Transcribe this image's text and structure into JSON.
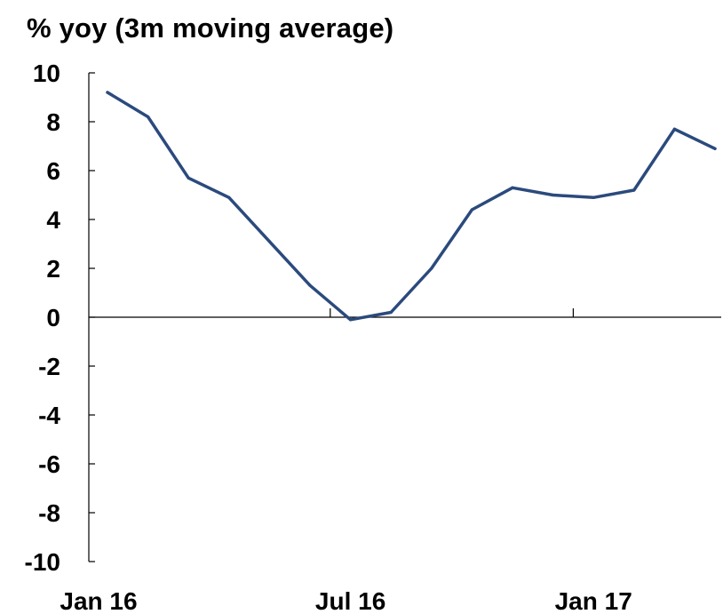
{
  "chart_data": {
    "type": "line",
    "title": "% yoy (3m moving average)",
    "xlabel": "",
    "ylabel": "",
    "x": [
      "Jan 16",
      "Feb 16",
      "Mar 16",
      "Apr 16",
      "May 16",
      "Jun 16",
      "Jul 16",
      "Aug 16",
      "Sep 16",
      "Oct 16",
      "Nov 16",
      "Dec 16",
      "Jan 17",
      "Feb 17",
      "Mar 17",
      "Apr 17"
    ],
    "x_tick_labels": [
      "Jan 16",
      "Jul 16",
      "Jan 17"
    ],
    "series": [
      {
        "values": [
          9.2,
          8.2,
          5.7,
          4.9,
          3.1,
          1.3,
          -0.1,
          0.2,
          2.0,
          4.4,
          5.3,
          5.0,
          4.9,
          5.2,
          7.7,
          6.9
        ]
      }
    ],
    "ylim": [
      -10,
      10
    ],
    "y_ticks": [
      10,
      8,
      6,
      4,
      2,
      0,
      -2,
      -4,
      -6,
      -8,
      -10
    ],
    "y_tick_labels": [
      "10",
      "8",
      "6",
      "4",
      "2",
      "0",
      "-2",
      "-4",
      "-6",
      "-8",
      "-10"
    ],
    "grid": false,
    "legend": "none",
    "colors": {
      "line": "#2b4a7d",
      "axis": "#000000",
      "text": "#000000"
    }
  }
}
